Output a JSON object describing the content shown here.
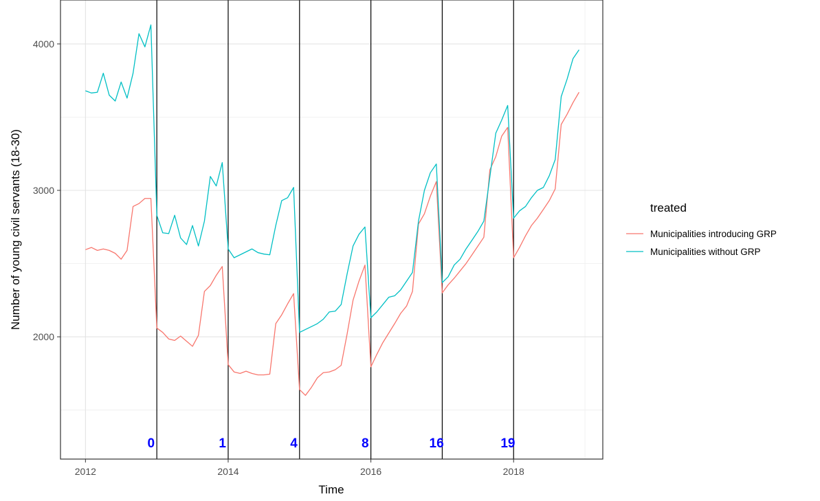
{
  "chart_data": {
    "type": "line",
    "title": "",
    "xlabel": "Time",
    "ylabel": "Number of young civil servants (18-30)",
    "xlim": [
      2011.65,
      2019.25
    ],
    "ylim": [
      1165,
      4300
    ],
    "x_ticks": [
      2012,
      2014,
      2016,
      2018
    ],
    "x_tick_labels": [
      "2012",
      "2014",
      "2016",
      "2018"
    ],
    "y_ticks": [
      2000,
      3000,
      4000
    ],
    "y_tick_labels": [
      "2000",
      "3000",
      "4000"
    ],
    "y_minor_gridlines": [
      1500,
      2500,
      3500
    ],
    "x_minor_gridlines": [
      2013,
      2015,
      2017,
      2019
    ],
    "grid": true,
    "legend": {
      "title": "treated",
      "position": "right",
      "items": [
        "Municipalities introducing GRP",
        "Municipalities without GRP"
      ]
    },
    "vlines": [
      2013,
      2014,
      2015,
      2016,
      2017,
      2018
    ],
    "annotations": [
      {
        "x": 2012.92,
        "text": "0"
      },
      {
        "x": 2013.92,
        "text": "1"
      },
      {
        "x": 2014.92,
        "text": "4"
      },
      {
        "x": 2015.92,
        "text": "8"
      },
      {
        "x": 2016.92,
        "text": "16"
      },
      {
        "x": 2017.92,
        "text": "19"
      }
    ],
    "annotation_y": 1245,
    "annotation_color": "#0000ff",
    "series": [
      {
        "name": "Municipalities introducing GRP",
        "color": "#f8766d",
        "points": [
          [
            2012.0,
            2595
          ],
          [
            2012.083,
            2610
          ],
          [
            2012.167,
            2590
          ],
          [
            2012.25,
            2600
          ],
          [
            2012.333,
            2590
          ],
          [
            2012.417,
            2570
          ],
          [
            2012.5,
            2530
          ],
          [
            2012.583,
            2590
          ],
          [
            2012.667,
            2890
          ],
          [
            2012.75,
            2910
          ],
          [
            2012.833,
            2945
          ],
          [
            2012.917,
            2945
          ],
          [
            2013.0,
            2060
          ],
          [
            2013.083,
            2030
          ],
          [
            2013.167,
            1985
          ],
          [
            2013.25,
            1975
          ],
          [
            2013.333,
            2005
          ],
          [
            2013.417,
            1970
          ],
          [
            2013.5,
            1935
          ],
          [
            2013.583,
            2010
          ],
          [
            2013.667,
            2310
          ],
          [
            2013.75,
            2350
          ],
          [
            2013.833,
            2420
          ],
          [
            2013.917,
            2480
          ],
          [
            2014.0,
            1810
          ],
          [
            2014.083,
            1760
          ],
          [
            2014.167,
            1750
          ],
          [
            2014.25,
            1765
          ],
          [
            2014.333,
            1750
          ],
          [
            2014.417,
            1740
          ],
          [
            2014.5,
            1740
          ],
          [
            2014.583,
            1745
          ],
          [
            2014.667,
            2090
          ],
          [
            2014.75,
            2150
          ],
          [
            2014.833,
            2225
          ],
          [
            2014.917,
            2295
          ],
          [
            2015.0,
            1640
          ],
          [
            2015.083,
            1600
          ],
          [
            2015.167,
            1655
          ],
          [
            2015.25,
            1720
          ],
          [
            2015.333,
            1755
          ],
          [
            2015.417,
            1760
          ],
          [
            2015.5,
            1775
          ],
          [
            2015.583,
            1805
          ],
          [
            2015.667,
            2020
          ],
          [
            2015.75,
            2250
          ],
          [
            2015.833,
            2380
          ],
          [
            2015.917,
            2490
          ],
          [
            2016.0,
            1795
          ],
          [
            2016.083,
            1880
          ],
          [
            2016.167,
            1960
          ],
          [
            2016.25,
            2025
          ],
          [
            2016.333,
            2090
          ],
          [
            2016.417,
            2160
          ],
          [
            2016.5,
            2210
          ],
          [
            2016.583,
            2310
          ],
          [
            2016.667,
            2770
          ],
          [
            2016.75,
            2840
          ],
          [
            2016.833,
            2960
          ],
          [
            2016.917,
            3060
          ],
          [
            2017.0,
            2300
          ],
          [
            2017.083,
            2355
          ],
          [
            2017.167,
            2400
          ],
          [
            2017.25,
            2450
          ],
          [
            2017.333,
            2500
          ],
          [
            2017.417,
            2560
          ],
          [
            2017.5,
            2620
          ],
          [
            2017.583,
            2680
          ],
          [
            2017.667,
            3140
          ],
          [
            2017.75,
            3230
          ],
          [
            2017.833,
            3370
          ],
          [
            2017.917,
            3430
          ],
          [
            2018.0,
            2540
          ],
          [
            2018.083,
            2610
          ],
          [
            2018.167,
            2690
          ],
          [
            2018.25,
            2760
          ],
          [
            2018.333,
            2810
          ],
          [
            2018.417,
            2870
          ],
          [
            2018.5,
            2930
          ],
          [
            2018.583,
            3010
          ],
          [
            2018.667,
            3450
          ],
          [
            2018.75,
            3520
          ],
          [
            2018.833,
            3600
          ],
          [
            2018.917,
            3670
          ]
        ]
      },
      {
        "name": "Municipalities without GRP",
        "color": "#00bfc4",
        "points": [
          [
            2012.0,
            3680
          ],
          [
            2012.083,
            3665
          ],
          [
            2012.167,
            3670
          ],
          [
            2012.25,
            3800
          ],
          [
            2012.333,
            3650
          ],
          [
            2012.417,
            3610
          ],
          [
            2012.5,
            3740
          ],
          [
            2012.583,
            3630
          ],
          [
            2012.667,
            3800
          ],
          [
            2012.75,
            4070
          ],
          [
            2012.833,
            3980
          ],
          [
            2012.917,
            4130
          ],
          [
            2013.0,
            2830
          ],
          [
            2013.083,
            2710
          ],
          [
            2013.167,
            2705
          ],
          [
            2013.25,
            2830
          ],
          [
            2013.333,
            2675
          ],
          [
            2013.417,
            2630
          ],
          [
            2013.5,
            2760
          ],
          [
            2013.583,
            2620
          ],
          [
            2013.667,
            2790
          ],
          [
            2013.75,
            3095
          ],
          [
            2013.833,
            3030
          ],
          [
            2013.917,
            3190
          ],
          [
            2014.0,
            2600
          ],
          [
            2014.083,
            2540
          ],
          [
            2014.167,
            2560
          ],
          [
            2014.25,
            2580
          ],
          [
            2014.333,
            2600
          ],
          [
            2014.417,
            2575
          ],
          [
            2014.5,
            2565
          ],
          [
            2014.583,
            2560
          ],
          [
            2014.667,
            2760
          ],
          [
            2014.75,
            2930
          ],
          [
            2014.833,
            2950
          ],
          [
            2014.917,
            3020
          ],
          [
            2015.0,
            2030
          ],
          [
            2015.083,
            2050
          ],
          [
            2015.167,
            2070
          ],
          [
            2015.25,
            2090
          ],
          [
            2015.333,
            2120
          ],
          [
            2015.417,
            2170
          ],
          [
            2015.5,
            2175
          ],
          [
            2015.583,
            2220
          ],
          [
            2015.667,
            2430
          ],
          [
            2015.75,
            2620
          ],
          [
            2015.833,
            2700
          ],
          [
            2015.917,
            2750
          ],
          [
            2016.0,
            2130
          ],
          [
            2016.083,
            2170
          ],
          [
            2016.167,
            2220
          ],
          [
            2016.25,
            2270
          ],
          [
            2016.333,
            2280
          ],
          [
            2016.417,
            2320
          ],
          [
            2016.5,
            2380
          ],
          [
            2016.583,
            2440
          ],
          [
            2016.667,
            2790
          ],
          [
            2016.75,
            3000
          ],
          [
            2016.833,
            3120
          ],
          [
            2016.917,
            3180
          ],
          [
            2017.0,
            2370
          ],
          [
            2017.083,
            2410
          ],
          [
            2017.167,
            2490
          ],
          [
            2017.25,
            2530
          ],
          [
            2017.333,
            2600
          ],
          [
            2017.417,
            2660
          ],
          [
            2017.5,
            2720
          ],
          [
            2017.583,
            2790
          ],
          [
            2017.667,
            3090
          ],
          [
            2017.75,
            3390
          ],
          [
            2017.833,
            3480
          ],
          [
            2017.917,
            3580
          ],
          [
            2018.0,
            2810
          ],
          [
            2018.083,
            2860
          ],
          [
            2018.167,
            2890
          ],
          [
            2018.25,
            2950
          ],
          [
            2018.333,
            3000
          ],
          [
            2018.417,
            3020
          ],
          [
            2018.5,
            3100
          ],
          [
            2018.583,
            3210
          ],
          [
            2018.667,
            3640
          ],
          [
            2018.75,
            3760
          ],
          [
            2018.833,
            3900
          ],
          [
            2018.917,
            3960
          ]
        ]
      }
    ]
  }
}
